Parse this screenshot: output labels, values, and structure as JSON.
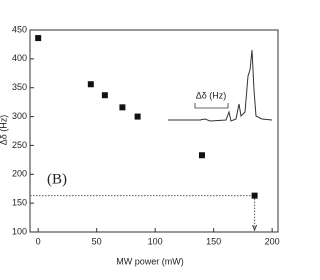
{
  "chart_data": {
    "type": "scatter",
    "x_label": "MW power (mW)",
    "y_label": "Δδ (Hz)",
    "panel_label": "(B)",
    "inset_label": "Δδ (Hz)",
    "x": [
      0,
      45,
      57,
      72,
      85,
      140,
      185
    ],
    "values": [
      436,
      356,
      337,
      316,
      300,
      233,
      163
    ],
    "color": "#111111",
    "xlim": [
      -7,
      205
    ],
    "ylim": [
      100,
      450
    ],
    "xticks": [
      0,
      50,
      100,
      150,
      200
    ],
    "yticks": [
      100,
      150,
      200,
      250,
      300,
      350,
      400,
      450
    ]
  }
}
